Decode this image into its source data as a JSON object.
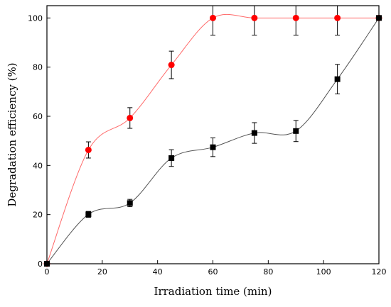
{
  "chart_data": {
    "type": "line",
    "xlabel": "Irradiation time (min)",
    "ylabel": "Degradation efficiency (%)",
    "xlim": [
      0,
      120
    ],
    "ylim": [
      0,
      105
    ],
    "xticks": [
      0,
      20,
      40,
      60,
      80,
      100,
      120
    ],
    "yticks": [
      0,
      20,
      40,
      60,
      80,
      100
    ],
    "grid": false,
    "legend": "none",
    "series": [
      {
        "marker": "circle",
        "color": "#ff0000",
        "line_color": "#ff6a6a",
        "x": [
          0,
          15,
          30,
          45,
          60,
          75,
          90,
          105,
          120
        ],
        "y": [
          0,
          46.3,
          59.3,
          80.9,
          100,
          100,
          100,
          100,
          100
        ],
        "err": [
          0,
          3.3,
          4.2,
          5.6,
          7.0,
          7.0,
          7.0,
          7.0,
          0
        ]
      },
      {
        "marker": "square",
        "color": "#000000",
        "line_color": "#555555",
        "x": [
          0,
          15,
          30,
          45,
          60,
          75,
          90,
          105,
          120
        ],
        "y": [
          0,
          20.1,
          24.7,
          43.0,
          47.4,
          53.2,
          54.0,
          75.1,
          100
        ],
        "err": [
          0,
          1.2,
          1.5,
          3.4,
          3.8,
          4.2,
          4.3,
          6.0,
          0
        ]
      }
    ]
  }
}
